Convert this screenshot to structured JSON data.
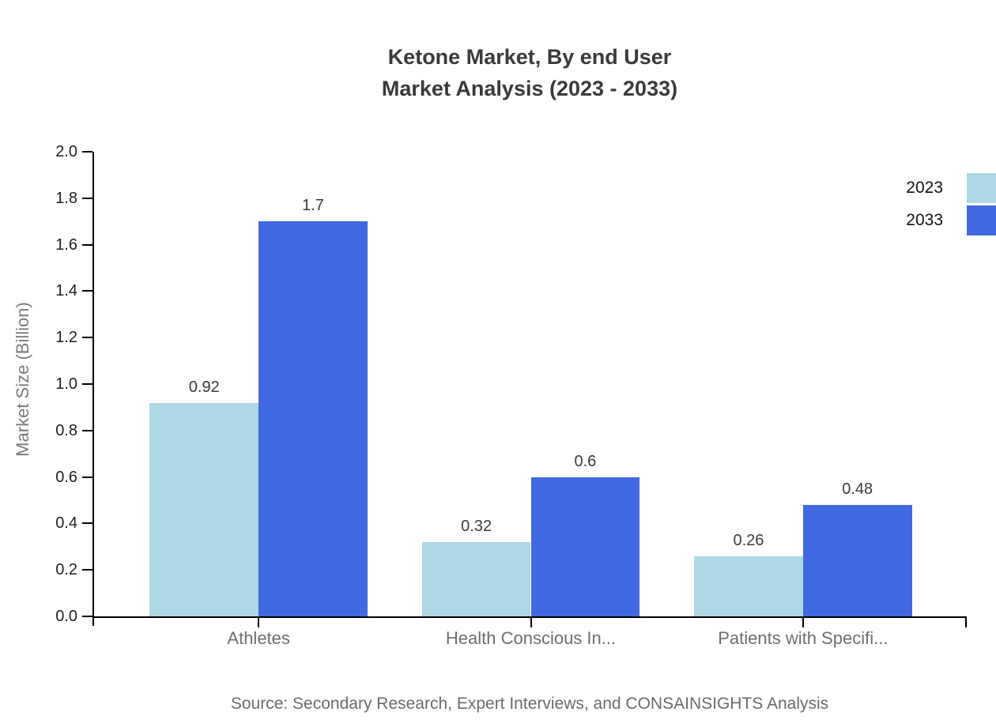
{
  "title": {
    "line1": "Ketone Market, By end User",
    "line2": "Market Analysis (2023 - 2033)"
  },
  "source": "Source: Secondary Research, Expert Interviews, and CONSAINSIGHTS Analysis",
  "legend": {
    "items": [
      {
        "label": "2023",
        "color": "#ADD8E6"
      },
      {
        "label": "2033",
        "color": "#4169E1"
      }
    ]
  },
  "chart_data": {
    "type": "bar",
    "title": "Ketone Market, By end User Market Analysis (2023 - 2033)",
    "categories": [
      "Athletes",
      "Health Conscious In...",
      "Patients with Specifi..."
    ],
    "series": [
      {
        "name": "2023",
        "color": "#ADD8E6",
        "values": [
          0.92,
          0.32,
          0.26
        ],
        "labels": [
          "0.92",
          "0.32",
          "0.26"
        ]
      },
      {
        "name": "2033",
        "color": "#4169E1",
        "values": [
          1.7,
          0.6,
          0.48
        ],
        "labels": [
          "1.7",
          "0.6",
          "0.48"
        ]
      }
    ],
    "xlabel": "",
    "ylabel": "Market Size (Billion)",
    "ylim": [
      0.0,
      2.0
    ],
    "yticks": [
      0.0,
      0.2,
      0.4,
      0.6,
      0.8,
      1.0,
      1.2,
      1.4,
      1.6,
      1.8,
      2.0
    ],
    "ytick_labels": [
      "0.0",
      "0.2",
      "0.4",
      "0.6",
      "0.8",
      "1.0",
      "1.2",
      "1.4",
      "1.6",
      "1.8",
      "2.0"
    ],
    "grid": false,
    "legend_position": "top-right",
    "colors": {
      "axis": "#000000",
      "title_text": "#3a3a3a",
      "tick_label_text": "#1f1f1f",
      "category_text": "#6e6e6e",
      "ylabel_text": "#7a7a7a",
      "source_text": "#6b6b6b",
      "background": "#ffffff"
    }
  }
}
